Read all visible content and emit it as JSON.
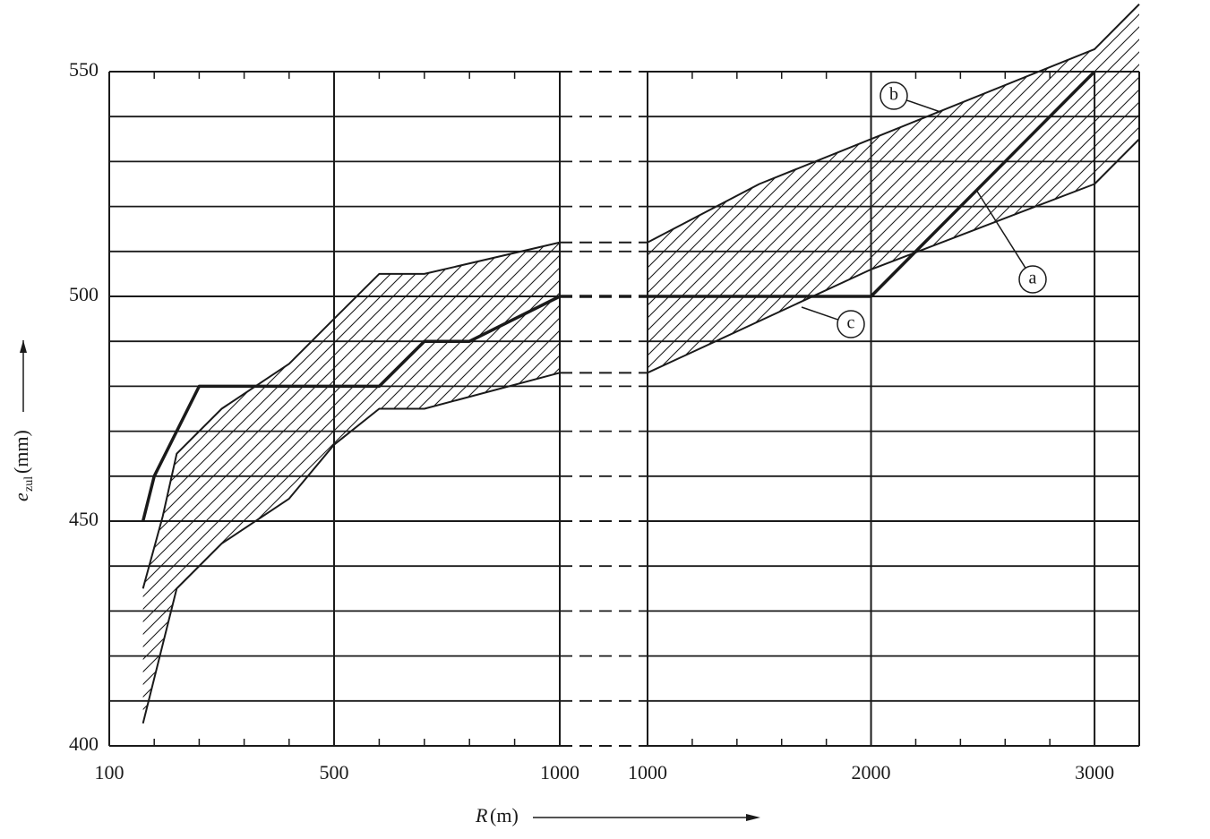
{
  "chart_data": {
    "type": "line",
    "xlabel": {
      "symbol": "R",
      "unit": "(m)"
    },
    "ylabel": {
      "symbol": "e",
      "subscript": "zul",
      "unit": "(mm)"
    },
    "ylim": [
      400,
      550
    ],
    "yticks": [
      400,
      450,
      500,
      550
    ],
    "yminor": [
      410,
      420,
      430,
      440,
      460,
      470,
      480,
      490,
      510,
      520,
      530,
      540
    ],
    "grid": true,
    "hatch": true,
    "color": "#1a1a1a",
    "xsegments": [
      {
        "xlim": [
          100,
          500
        ],
        "xticks": [
          100,
          500
        ],
        "xminor": [
          180,
          260,
          340,
          420
        ]
      },
      {
        "xlim": [
          500,
          1000
        ],
        "xticks": [
          1000
        ],
        "xminor": [
          600,
          700,
          800,
          900
        ],
        "break": true
      },
      {
        "xlim": [
          1000,
          3200
        ],
        "xticks": [
          1000,
          2000,
          3000
        ],
        "xminor": [
          1200,
          1400,
          1600,
          1800,
          2200,
          2400,
          2600,
          2800
        ]
      }
    ],
    "series": [
      {
        "name": "a",
        "x": [
          160,
          180,
          260,
          600,
          700,
          800,
          1000,
          1000,
          2000,
          3000
        ],
        "values": [
          450,
          460,
          480,
          480,
          490,
          490,
          500,
          500,
          500,
          550
        ]
      },
      {
        "name": "b",
        "x": [
          160,
          195,
          220,
          300,
          420,
          500,
          600,
          700,
          1000,
          1000,
          1500,
          2000,
          3000,
          3200
        ],
        "values": [
          435,
          451,
          465,
          475,
          485,
          495,
          505,
          505,
          512,
          512,
          525,
          535,
          555,
          565
        ]
      },
      {
        "name": "c",
        "x": [
          160,
          220,
          300,
          420,
          500,
          600,
          700,
          1000,
          1000,
          2000,
          3000,
          3200
        ],
        "values": [
          405,
          435,
          445,
          455,
          467,
          475,
          475,
          483,
          483,
          506,
          525,
          535
        ]
      }
    ]
  }
}
